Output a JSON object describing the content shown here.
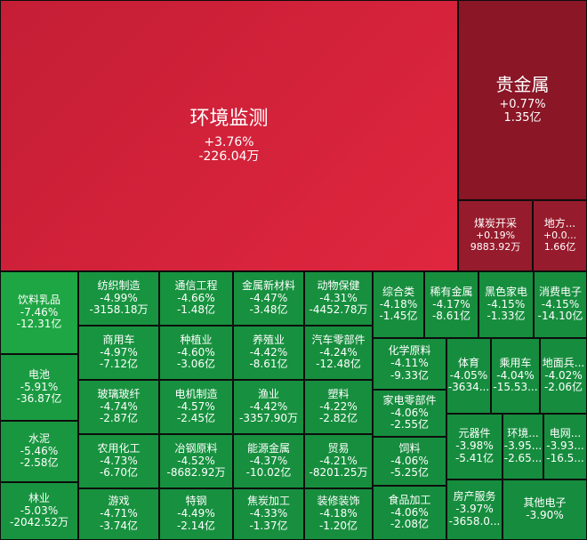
{
  "chart_data": {
    "type": "treemap",
    "colors": {
      "up_strong": "#d22a3c",
      "up_weak": "#8e1a2a",
      "down": "#1f9b4c",
      "down_dark": "#178a3f"
    },
    "cells": [
      {
        "name": "环境监测",
        "change": "+3.76%",
        "value": "-226.04万",
        "change_pct": 3.76
      },
      {
        "name": "贵金属",
        "change": "+0.77%",
        "value": "1.35亿",
        "change_pct": 0.77
      },
      {
        "name": "煤炭开采",
        "change": "+0.19%",
        "value": "9883.92万",
        "change_pct": 0.19
      },
      {
        "name": "地方...",
        "change": "+0.0...",
        "value": "1.66亿",
        "change_pct": 0.0
      },
      {
        "name": "饮料乳品",
        "change": "-7.46%",
        "value": "-12.31亿",
        "change_pct": -7.46
      },
      {
        "name": "电池",
        "change": "-5.91%",
        "value": "-36.87亿",
        "change_pct": -5.91
      },
      {
        "name": "水泥",
        "change": "-5.46%",
        "value": "-2.58亿",
        "change_pct": -5.46
      },
      {
        "name": "林业",
        "change": "-5.03%",
        "value": "-2042.52万",
        "change_pct": -5.03
      },
      {
        "name": "纺织制造",
        "change": "-4.99%",
        "value": "-3158.18万",
        "change_pct": -4.99
      },
      {
        "name": "商用车",
        "change": "-4.97%",
        "value": "-7.12亿",
        "change_pct": -4.97
      },
      {
        "name": "玻璃玻纤",
        "change": "-4.74%",
        "value": "-2.87亿",
        "change_pct": -4.74
      },
      {
        "name": "农用化工",
        "change": "-4.73%",
        "value": "-6.70亿",
        "change_pct": -4.73
      },
      {
        "name": "游戏",
        "change": "-4.71%",
        "value": "-3.74亿",
        "change_pct": -4.71
      },
      {
        "name": "通信工程",
        "change": "-4.66%",
        "value": "-1.48亿",
        "change_pct": -4.66
      },
      {
        "name": "种植业",
        "change": "-4.60%",
        "value": "-3.06亿",
        "change_pct": -4.6
      },
      {
        "name": "电机制造",
        "change": "-4.57%",
        "value": "-2.45亿",
        "change_pct": -4.57
      },
      {
        "name": "冶钢原料",
        "change": "-4.52%",
        "value": "-8682.92万",
        "change_pct": -4.52
      },
      {
        "name": "特钢",
        "change": "-4.49%",
        "value": "-2.14亿",
        "change_pct": -4.49
      },
      {
        "name": "金属新材料",
        "change": "-4.47%",
        "value": "-3.48亿",
        "change_pct": -4.47
      },
      {
        "name": "养殖业",
        "change": "-4.42%",
        "value": "-8.61亿",
        "change_pct": -4.42
      },
      {
        "name": "渔业",
        "change": "-4.42%",
        "value": "-3357.90万",
        "change_pct": -4.42
      },
      {
        "name": "能源金属",
        "change": "-4.37%",
        "value": "-10.02亿",
        "change_pct": -4.37
      },
      {
        "name": "焦炭加工",
        "change": "-4.33%",
        "value": "-1.37亿",
        "change_pct": -4.33
      },
      {
        "name": "动物保健",
        "change": "-4.31%",
        "value": "-4452.78万",
        "change_pct": -4.31
      },
      {
        "name": "汽车零部件",
        "change": "-4.24%",
        "value": "-12.48亿",
        "change_pct": -4.24
      },
      {
        "name": "塑料",
        "change": "-4.22%",
        "value": "-2.82亿",
        "change_pct": -4.22
      },
      {
        "name": "贸易",
        "change": "-4.21%",
        "value": "-8201.25万",
        "change_pct": -4.21
      },
      {
        "name": "装修装饰",
        "change": "-4.18%",
        "value": "-1.20亿",
        "change_pct": -4.18
      },
      {
        "name": "综合类",
        "change": "-4.18%",
        "value": "-1.45亿",
        "change_pct": -4.18
      },
      {
        "name": "稀有金属",
        "change": "-4.17%",
        "value": "-8.61亿",
        "change_pct": -4.17
      },
      {
        "name": "黑色家电",
        "change": "-4.15%",
        "value": "-1.33亿",
        "change_pct": -4.15
      },
      {
        "name": "消费电子",
        "change": "-4.15%",
        "value": "-14.10亿",
        "change_pct": -4.15
      },
      {
        "name": "化学原料",
        "change": "-4.11%",
        "value": "-9.33亿",
        "change_pct": -4.11
      },
      {
        "name": "家电零部件",
        "change": "-4.06%",
        "value": "-2.55亿",
        "change_pct": -4.06
      },
      {
        "name": "饲料",
        "change": "-4.06%",
        "value": "-5.25亿",
        "change_pct": -4.06
      },
      {
        "name": "食品加工",
        "change": "-4.06%",
        "value": "-2.08亿",
        "change_pct": -4.06
      },
      {
        "name": "体育",
        "change": "-4.05%",
        "value": "-3634...",
        "change_pct": -4.05
      },
      {
        "name": "乘用车",
        "change": "-4.04%",
        "value": "-15.53...",
        "change_pct": -4.04
      },
      {
        "name": "地面兵...",
        "change": "-4.02%",
        "value": "-2.06亿",
        "change_pct": -4.02
      },
      {
        "name": "元器件",
        "change": "-3.98%",
        "value": "-5.41亿",
        "change_pct": -3.98
      },
      {
        "name": "环境...",
        "change": "-3.95...",
        "value": "-2.65...",
        "change_pct": -3.95
      },
      {
        "name": "电网...",
        "change": "-3.93...",
        "value": "-16.5...",
        "change_pct": -3.93
      },
      {
        "name": "房产服务",
        "change": "-3.97%",
        "value": "-3658.0...",
        "change_pct": -3.97
      },
      {
        "name": "其他电子",
        "change": "-3.90%",
        "value": "",
        "change_pct": -3.9
      }
    ]
  }
}
